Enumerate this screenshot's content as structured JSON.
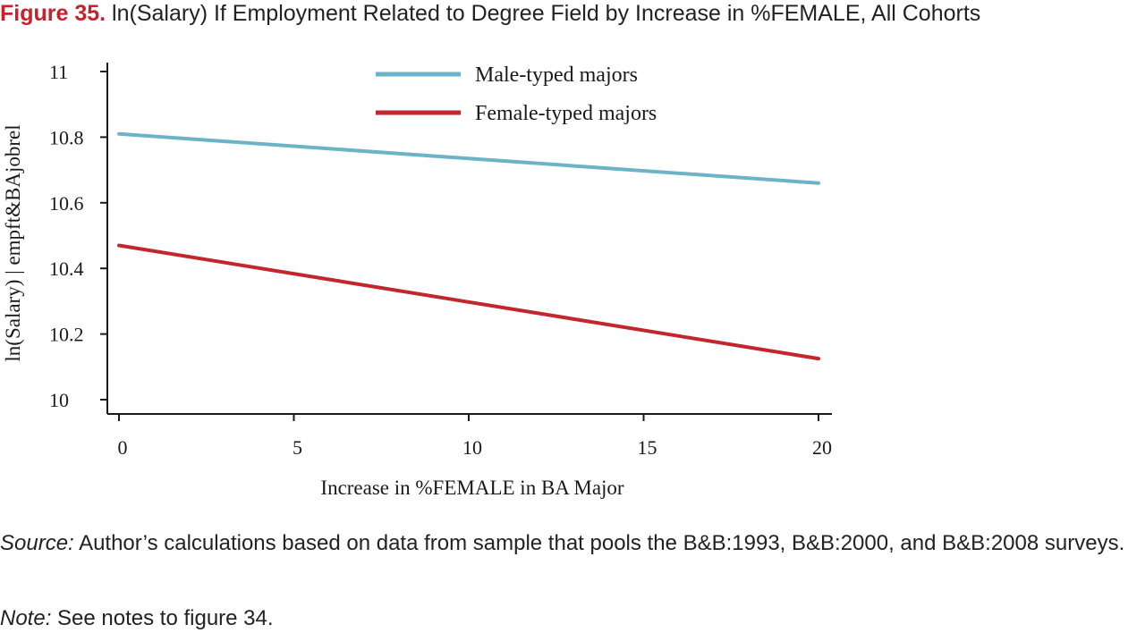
{
  "figure": {
    "number": "Figure 35.",
    "title": "ln(Salary) If Employment Related to Degree Field by Increase in %FEMALE, All Cohorts"
  },
  "caption": {
    "source_label": "Source:",
    "source_text": "Author’s calculations based on data from sample that pools the B&B:1993, B&B:2000, and B&B:2008 surveys.",
    "note_label": "Note:",
    "note_text": "See notes to figure 34."
  },
  "colors": {
    "male": "#6db3c8",
    "female": "#c1272d",
    "title_accent": "#c8202c"
  },
  "chart_data": {
    "type": "line",
    "title": "",
    "xlabel": "Increase in %FEMALE in BA Major",
    "ylabel": "ln(Salary) | empft&BAjobrel",
    "xlim": [
      0,
      20
    ],
    "ylim": [
      10,
      11
    ],
    "xticks": [
      "0",
      "5",
      "10",
      "15",
      "20"
    ],
    "yticks": [
      "10",
      "10.2",
      "10.4",
      "10.6",
      "10.8",
      "11"
    ],
    "grid": false,
    "legend_position": "top-center",
    "series": [
      {
        "name": "Male-typed majors",
        "x": [
          0,
          20
        ],
        "y": [
          10.81,
          10.66
        ]
      },
      {
        "name": "Female-typed majors",
        "x": [
          0,
          20
        ],
        "y": [
          10.47,
          10.125
        ]
      }
    ]
  }
}
